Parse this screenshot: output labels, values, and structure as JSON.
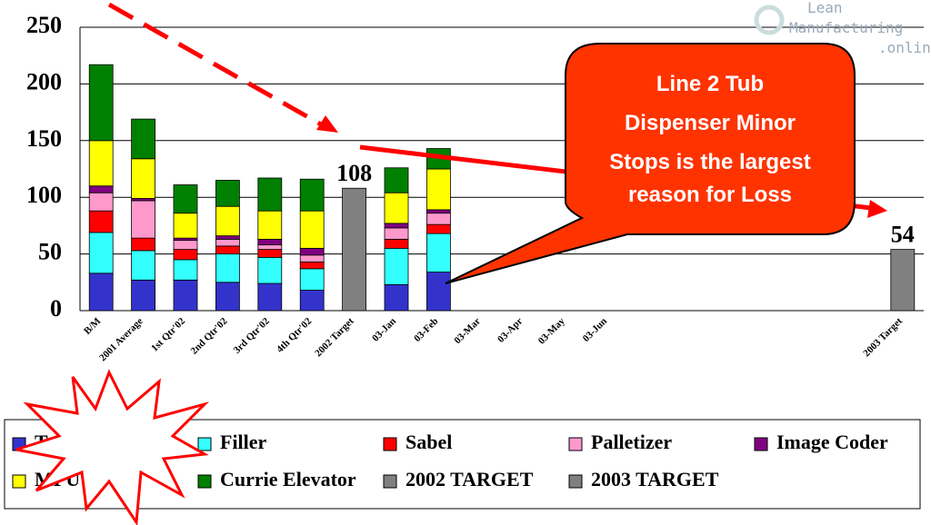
{
  "chart_data": {
    "type": "bar",
    "stacked": true,
    "categories": [
      "B/M",
      "2001 Average",
      "1st Qtr'02",
      "2nd Qtr'02",
      "3rd Qtr'02",
      "4th Qtr'02",
      "2002 Target",
      "03-Jan",
      "03-Feb",
      "03-Mar",
      "03-Apr",
      "03-May",
      "03-Jun",
      null,
      null,
      null,
      null,
      null,
      null,
      "2003 Target"
    ],
    "series": [
      {
        "name": "Tub Dispenser",
        "color": "#3333cc",
        "values": [
          33,
          27,
          27,
          25,
          24,
          18,
          null,
          23,
          34,
          null,
          null,
          null,
          null,
          null,
          null,
          null,
          null,
          null,
          null,
          null
        ]
      },
      {
        "name": "Filler",
        "color": "#33ffff",
        "values": [
          36,
          26,
          18,
          25,
          23,
          19,
          null,
          32,
          34,
          null,
          null,
          null,
          null,
          null,
          null,
          null,
          null,
          null,
          null,
          null
        ]
      },
      {
        "name": "Sabel",
        "color": "#ff0000",
        "values": [
          19,
          11,
          9,
          7,
          7,
          6,
          null,
          8,
          8,
          null,
          null,
          null,
          null,
          null,
          null,
          null,
          null,
          null,
          null,
          null
        ]
      },
      {
        "name": "Palletizer",
        "color": "#ff99cc",
        "values": [
          16,
          33,
          8,
          6,
          4,
          6,
          null,
          10,
          10,
          null,
          null,
          null,
          null,
          null,
          null,
          null,
          null,
          null,
          null,
          null
        ]
      },
      {
        "name": "Image Coder",
        "color": "#800080",
        "values": [
          6,
          2,
          2,
          3,
          5,
          6,
          null,
          4,
          3,
          null,
          null,
          null,
          null,
          null,
          null,
          null,
          null,
          null,
          null,
          null
        ]
      },
      {
        "name": "MPU",
        "color": "#ffff00",
        "values": [
          40,
          35,
          22,
          26,
          25,
          33,
          null,
          27,
          36,
          null,
          null,
          null,
          null,
          null,
          null,
          null,
          null,
          null,
          null,
          null
        ]
      },
      {
        "name": "Currie Elevator",
        "color": "#008000",
        "values": [
          67,
          35,
          25,
          23,
          29,
          28,
          null,
          22,
          18,
          null,
          null,
          null,
          null,
          null,
          null,
          null,
          null,
          null,
          null,
          null
        ]
      },
      {
        "name": "2002 TARGET",
        "color": "#808080",
        "values": [
          null,
          null,
          null,
          null,
          null,
          null,
          108,
          null,
          null,
          null,
          null,
          null,
          null,
          null,
          null,
          null,
          null,
          null,
          null,
          null
        ]
      },
      {
        "name": "2003 TARGET",
        "color": "#808080",
        "values": [
          null,
          null,
          null,
          null,
          null,
          null,
          null,
          null,
          null,
          null,
          null,
          null,
          null,
          null,
          null,
          null,
          null,
          null,
          null,
          54
        ]
      }
    ],
    "ylim": [
      0,
      250
    ],
    "yticks": [
      0,
      50,
      100,
      150,
      200,
      250
    ],
    "grid": true,
    "annotations": [
      "Line 2  Tub",
      "Dispenser  Minor",
      "Stops  is the largest",
      "reason for Loss"
    ],
    "logo": [
      "Lean",
      "Manufacturing",
      ".online"
    ]
  }
}
